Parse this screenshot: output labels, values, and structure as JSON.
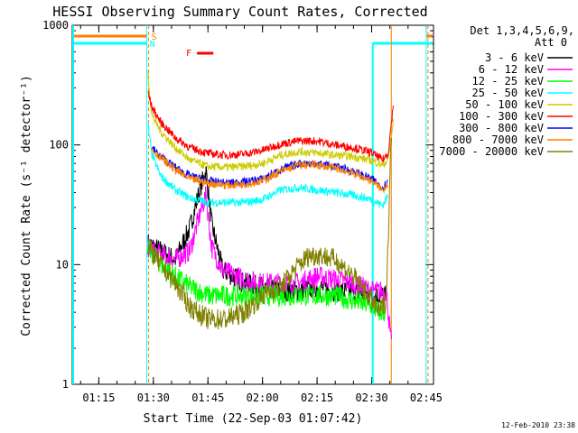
{
  "chart_data": {
    "type": "line",
    "title": "HESSI Observing Summary Count Rates, Corrected",
    "xlabel": "Start Time (22-Sep-03 01:07:42)",
    "ylabel": "Corrected Count Rate (s⁻¹ detector⁻¹)",
    "yscale": "log",
    "ylim": [
      1,
      1000
    ],
    "xlim_minutes": [
      67.7,
      167.0
    ],
    "x_ticks": [
      {
        "label": "01:15",
        "minute": 75
      },
      {
        "label": "01:30",
        "minute": 90
      },
      {
        "label": "01:45",
        "minute": 105
      },
      {
        "label": "02:00",
        "minute": 120
      },
      {
        "label": "02:15",
        "minute": 135
      },
      {
        "label": "02:30",
        "minute": 150
      },
      {
        "label": "02:45",
        "minute": 165
      }
    ],
    "y_ticks": [
      {
        "label": "1",
        "value": 1
      },
      {
        "label": "10",
        "value": 10
      },
      {
        "label": "100",
        "value": 100
      },
      {
        "label": "1000",
        "value": 1000
      }
    ],
    "legend_title": "Det 1,3,4,5,6,9,",
    "legend_subtitle": "Att 0",
    "legend_position": "right",
    "series": [
      {
        "name": "3 - 6 keV",
        "color": "#000000",
        "x": [
          88.5,
          92,
          96,
          100,
          103,
          104.5,
          106,
          109,
          115,
          120,
          125,
          130,
          135,
          140,
          145,
          150,
          154
        ],
        "y": [
          15,
          13,
          11,
          20,
          45,
          60,
          22,
          9,
          7,
          6.5,
          6,
          6,
          6.5,
          6,
          6,
          5.5,
          5.5
        ]
      },
      {
        "name": "6 - 12 keV",
        "color": "#ff00ff",
        "x": [
          88.5,
          92,
          96,
          100,
          103,
          104.5,
          106,
          109,
          115,
          120,
          125,
          130,
          135,
          140,
          145,
          150,
          154,
          155.5
        ],
        "y": [
          14,
          12,
          11,
          13,
          28,
          38,
          14,
          9,
          7.5,
          7,
          7,
          7,
          8,
          7.5,
          7,
          6,
          6,
          2
        ]
      },
      {
        "name": "12 - 25 keV",
        "color": "#00ff00",
        "x": [
          88.5,
          92,
          96,
          100,
          105,
          110,
          120,
          130,
          140,
          150,
          152,
          154
        ],
        "y": [
          14,
          10,
          8,
          6.5,
          5.5,
          5.5,
          5.5,
          5.5,
          5.5,
          4.5,
          4,
          4
        ]
      },
      {
        "name": "25 - 50 keV",
        "color": "#00ffff",
        "x": [
          88.5,
          89.5,
          92,
          96,
          100,
          105,
          110,
          115,
          120,
          125,
          130,
          135,
          140,
          145,
          150,
          153,
          154.5
        ],
        "y": [
          150,
          85,
          55,
          42,
          36,
          33,
          33,
          33,
          35,
          42,
          44,
          42,
          40,
          38,
          35,
          31,
          38
        ]
      },
      {
        "name": "50 - 100 keV",
        "color": "#cccc00",
        "x": [
          88.5,
          89.5,
          92,
          96,
          100,
          105,
          110,
          115,
          120,
          125,
          130,
          135,
          140,
          145,
          150,
          153,
          154.5,
          156
        ],
        "y": [
          400,
          180,
          130,
          95,
          75,
          66,
          65,
          66,
          70,
          82,
          88,
          86,
          82,
          80,
          74,
          68,
          75,
          160
        ]
      },
      {
        "name": "100 - 300 keV",
        "color": "#ff0000",
        "x": [
          88.5,
          89.5,
          92,
          96,
          100,
          105,
          110,
          115,
          120,
          125,
          130,
          135,
          140,
          145,
          150,
          153,
          154.5,
          156
        ],
        "y": [
          280,
          210,
          155,
          115,
          95,
          85,
          82,
          84,
          90,
          102,
          108,
          108,
          100,
          95,
          86,
          75,
          85,
          220
        ]
      },
      {
        "name": "300 - 800 keV",
        "color": "#0000ff",
        "x": [
          89.5,
          92,
          96,
          100,
          105,
          110,
          115,
          120,
          125,
          130,
          135,
          140,
          145,
          150,
          153,
          154.5
        ],
        "y": [
          95,
          80,
          65,
          55,
          50,
          48,
          49,
          52,
          62,
          70,
          70,
          66,
          60,
          52,
          44,
          50
        ]
      },
      {
        "name": "800 - 7000 keV",
        "color": "#ff8000",
        "x": [
          89.5,
          92,
          96,
          100,
          105,
          110,
          115,
          120,
          125,
          130,
          135,
          140,
          145,
          150,
          153,
          154.5
        ],
        "y": [
          92,
          78,
          62,
          52,
          48,
          46,
          47,
          50,
          60,
          68,
          68,
          64,
          58,
          50,
          42,
          48
        ]
      },
      {
        "name": "7000 - 20000 keV",
        "color": "#808000",
        "x": [
          88.5,
          92,
          96,
          100,
          102,
          105,
          110,
          115,
          120,
          125,
          130,
          133,
          136,
          140,
          145,
          150,
          152,
          154,
          155.5
        ],
        "y": [
          14,
          10,
          7,
          4.5,
          4,
          3.5,
          3.5,
          4,
          5.5,
          6.5,
          10,
          12,
          12,
          11,
          8,
          5,
          4,
          5,
          150
        ]
      }
    ],
    "annotations": [
      {
        "label": "S",
        "color": "#ff8000"
      },
      {
        "label": "N",
        "color": "#00ffff"
      },
      {
        "label": "F",
        "color": "#ff0000"
      }
    ],
    "footer": "12-Feb-2010 23:38"
  }
}
